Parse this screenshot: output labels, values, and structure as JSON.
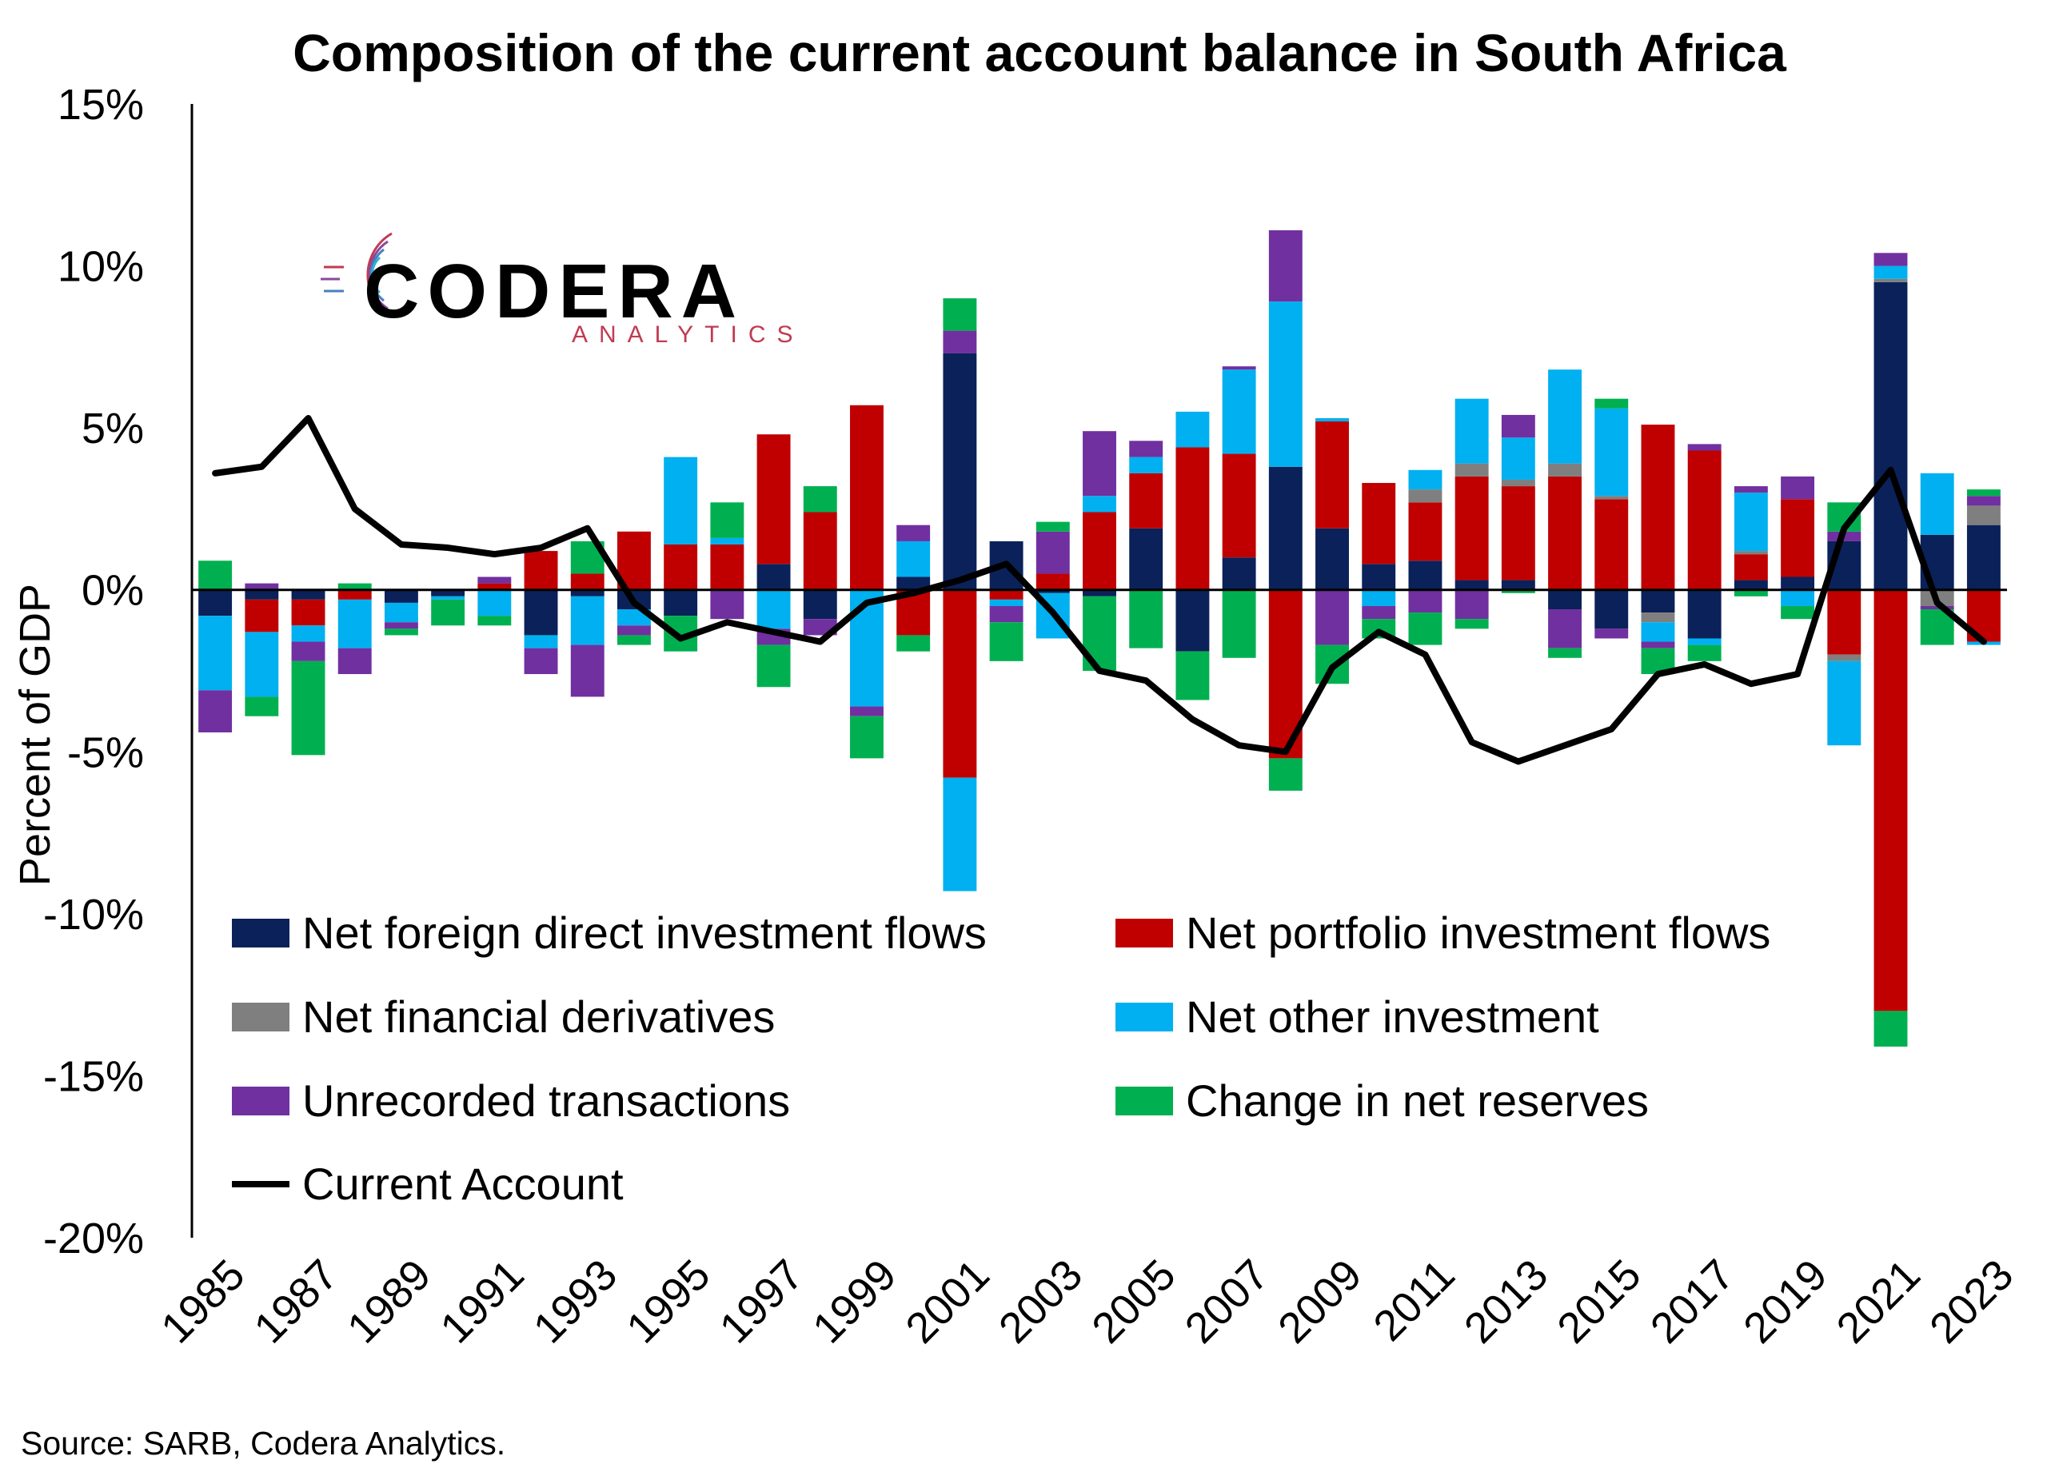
{
  "title": "Composition of the current account balance in South Africa",
  "source": "Source: SARB, Codera Analytics.",
  "logo": {
    "word": "CODERA",
    "sub": "ANALYTICS"
  },
  "chart_data": {
    "type": "bar",
    "stacked": true,
    "ylabel": "Percent of GDP",
    "xlabel": "",
    "ylim": [
      -20,
      15
    ],
    "yticks": [
      "15%",
      "10%",
      "5%",
      "0%",
      "-5%",
      "-10%",
      "-15%",
      "-20%"
    ],
    "ytick_values": [
      15,
      10,
      5,
      0,
      -5,
      -10,
      -15,
      -20
    ],
    "categories": [
      "1985",
      "1986",
      "1987",
      "1988",
      "1989",
      "1990",
      "1991",
      "1992",
      "1993",
      "1994",
      "1995",
      "1996",
      "1997",
      "1998",
      "1999",
      "2000",
      "2001",
      "2002",
      "2003",
      "2004",
      "2005",
      "2006",
      "2007",
      "2008",
      "2009",
      "2010",
      "2011",
      "2012",
      "2013",
      "2014",
      "2015",
      "2016",
      "2017",
      "2018",
      "2019",
      "2020",
      "2021",
      "2022",
      "2023"
    ],
    "xtick_labels": [
      "1985",
      "1987",
      "1989",
      "1991",
      "1993",
      "1995",
      "1997",
      "1999",
      "2001",
      "2003",
      "2005",
      "2007",
      "2009",
      "2011",
      "2013",
      "2015",
      "2017",
      "2019",
      "2021",
      "2023"
    ],
    "series": [
      {
        "name": "Net foreign direct investment flows",
        "color": "#0b2159",
        "values": [
          -0.8,
          -0.3,
          -0.3,
          0,
          -0.4,
          -0.2,
          0,
          -1.4,
          -0.2,
          -0.6,
          -0.8,
          0,
          0.8,
          -0.9,
          0,
          0.4,
          7.3,
          1.5,
          -0.1,
          -0.2,
          1.9,
          -1.9,
          1.0,
          3.8,
          1.9,
          0.8,
          0.9,
          0.3,
          0.3,
          -0.6,
          -1.2,
          -0.7,
          -1.5,
          0.3,
          0.4,
          1.5,
          9.5,
          1.7,
          2.0
        ]
      },
      {
        "name": "Net portfolio investment flows",
        "color": "#c00000",
        "values": [
          0,
          -1.0,
          -0.8,
          -0.3,
          0,
          0,
          0.2,
          1.2,
          0.5,
          1.8,
          1.4,
          1.4,
          4.0,
          2.4,
          5.7,
          -1.4,
          -5.8,
          -0.3,
          0.5,
          2.4,
          1.7,
          4.4,
          3.2,
          -5.2,
          3.3,
          2.5,
          1.8,
          3.2,
          2.9,
          3.5,
          2.8,
          5.1,
          4.3,
          0.8,
          2.4,
          -2.0,
          -13.0,
          0,
          -1.6
        ]
      },
      {
        "name": "Net financial derivatives",
        "color": "#7f7f7f",
        "values": [
          0,
          0,
          0,
          0,
          0,
          0,
          0,
          0,
          0,
          0,
          0,
          0,
          0,
          0,
          0,
          0,
          0,
          0,
          0,
          0,
          0,
          0,
          0,
          0,
          0,
          0,
          0.4,
          0.4,
          0.2,
          0.4,
          0.1,
          -0.3,
          0,
          0.1,
          0,
          -0.2,
          0.1,
          -0.5,
          0.6
        ]
      },
      {
        "name": "Net other investment",
        "color": "#00b0f0",
        "values": [
          -2.3,
          -2.0,
          -0.5,
          -1.5,
          -0.6,
          -0.1,
          -0.8,
          -0.4,
          -1.5,
          -0.5,
          2.7,
          0.2,
          -1.2,
          0,
          -3.6,
          1.1,
          -3.5,
          -0.2,
          -1.4,
          0.5,
          0.5,
          1.1,
          2.6,
          5.1,
          0.1,
          -0.5,
          0.6,
          2.0,
          1.3,
          2.9,
          2.7,
          -0.6,
          -0.2,
          1.8,
          -0.5,
          -2.6,
          0.4,
          1.9,
          -0.1
        ]
      },
      {
        "name": "Unrecorded transactions",
        "color": "#7030a0",
        "values": [
          -1.3,
          0.2,
          -0.6,
          -0.8,
          -0.2,
          0,
          0.2,
          -0.8,
          -1.6,
          -0.3,
          0,
          -0.9,
          -0.5,
          -0.5,
          -0.3,
          0.5,
          0.7,
          -0.5,
          1.3,
          2.0,
          0.5,
          0,
          0.1,
          2.2,
          -1.7,
          -0.4,
          -0.7,
          -0.9,
          0.7,
          -1.2,
          -0.3,
          -0.2,
          0.2,
          0.2,
          0.7,
          0.3,
          0.4,
          -0.1,
          0.3
        ]
      },
      {
        "name": "Change in net reserves",
        "color": "#00b050",
        "values": [
          0.9,
          -0.6,
          -2.9,
          0.2,
          -0.2,
          -0.8,
          -0.3,
          0,
          1.0,
          -0.3,
          -1.1,
          1.1,
          -1.3,
          0.8,
          -1.3,
          -0.5,
          1.0,
          -1.2,
          0.3,
          -2.3,
          -1.8,
          -1.5,
          -2.1,
          -1.0,
          -1.2,
          -0.6,
          -1.0,
          -0.3,
          -0.1,
          -0.3,
          0.3,
          -0.8,
          -0.5,
          -0.2,
          -0.4,
          0.9,
          -1.1,
          -1.1,
          0.2
        ]
      }
    ],
    "line": {
      "name": "Current Account",
      "color": "#000000",
      "values": [
        3.6,
        3.8,
        5.3,
        2.5,
        1.4,
        1.3,
        1.1,
        1.3,
        1.9,
        -0.4,
        -1.5,
        -1.0,
        -1.3,
        -1.6,
        -0.4,
        -0.1,
        0.3,
        0.8,
        -0.7,
        -2.5,
        -2.8,
        -4.0,
        -4.8,
        -5.0,
        -2.4,
        -1.3,
        -2.0,
        -4.7,
        -5.3,
        -4.8,
        -4.3,
        -2.6,
        -2.3,
        -2.9,
        -2.6,
        1.9,
        3.7,
        -0.4,
        -1.6
      ]
    },
    "legend": [
      "Net foreign direct investment flows",
      "Net portfolio investment flows",
      "Net financial derivatives",
      "Net other investment",
      "Unrecorded transactions",
      "Change in net reserves",
      "Current Account"
    ],
    "legend_position": "lower-center-inside",
    "grid": false
  }
}
